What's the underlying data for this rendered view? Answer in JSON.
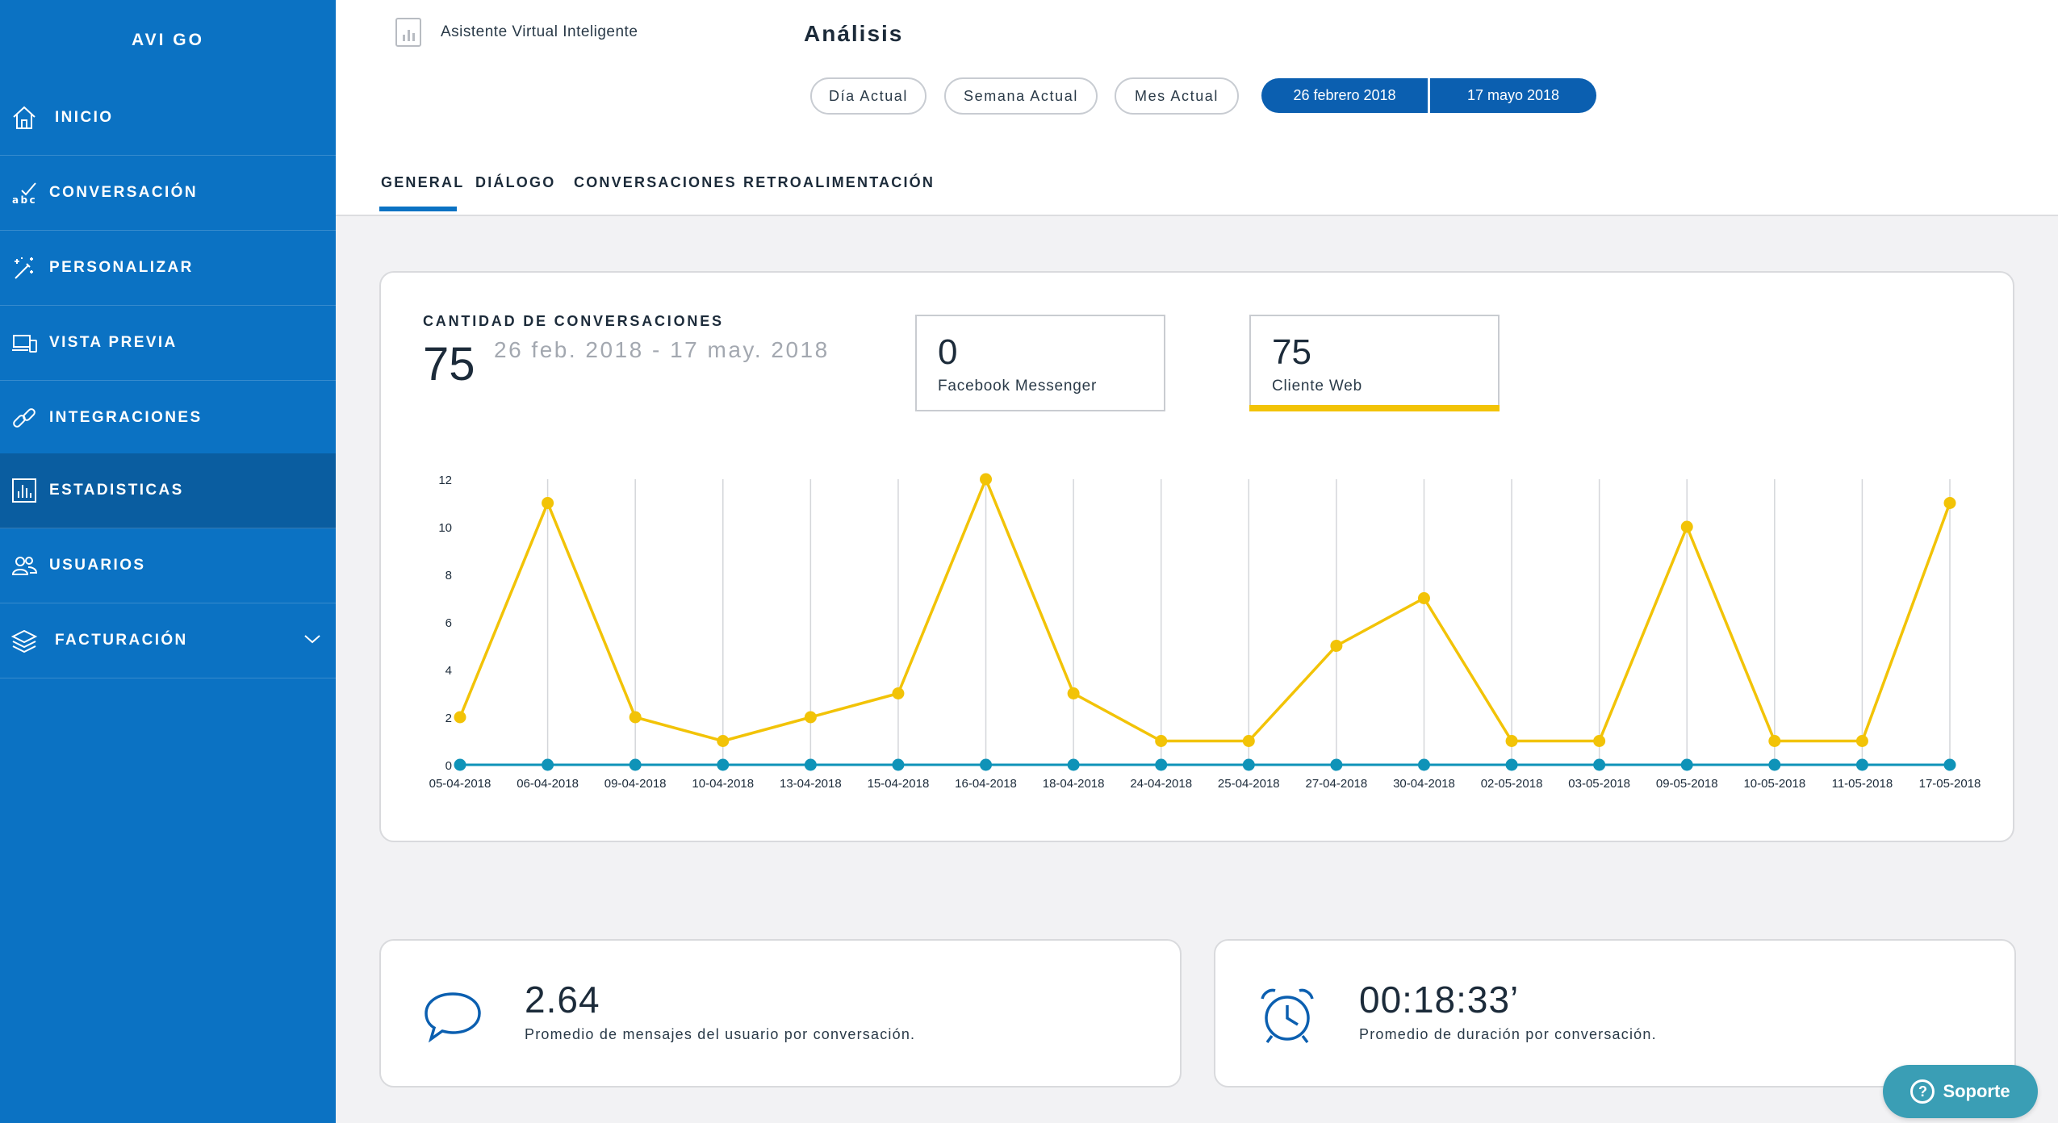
{
  "sidebar": {
    "brand": "AVI GO",
    "items": [
      {
        "label": "INICIO",
        "icon": "home-icon"
      },
      {
        "label": "CONVERSACIÓN",
        "icon": "abc-check-icon"
      },
      {
        "label": "PERSONALIZAR",
        "icon": "magic-wand-icon"
      },
      {
        "label": "VISTA PREVIA",
        "icon": "laptop-phone-icon"
      },
      {
        "label": "INTEGRACIONES",
        "icon": "link-icon"
      },
      {
        "label": "ESTADISTICAS",
        "icon": "bar-chart-icon",
        "active": true
      },
      {
        "label": "USUARIOS",
        "icon": "users-icon"
      },
      {
        "label": "FACTURACIÓN",
        "icon": "layers-icon",
        "expandable": true
      }
    ]
  },
  "header": {
    "assistant_name": "Asistente Virtual Inteligente",
    "title": "Análisis",
    "filters": [
      "Día Actual",
      "Semana Actual",
      "Mes Actual"
    ],
    "date_from": "26 febrero 2018",
    "date_to": "17 mayo 2018"
  },
  "tabs": [
    "GENERAL",
    "DIÁLOGO",
    "CONVERSACIONES",
    "RETROALIMENTACIÓN"
  ],
  "active_tab": "GENERAL",
  "conversations": {
    "label": "CANTIDAD DE CONVERSACIONES",
    "total": "75",
    "range": "26 feb. 2018 - 17 may. 2018",
    "channels": [
      {
        "value": "0",
        "name": "Facebook Messenger"
      },
      {
        "value": "75",
        "name": "Cliente Web",
        "selected": true
      }
    ]
  },
  "chart_data": {
    "type": "line",
    "categories": [
      "05-04-2018",
      "06-04-2018",
      "09-04-2018",
      "10-04-2018",
      "13-04-2018",
      "15-04-2018",
      "16-04-2018",
      "18-04-2018",
      "24-04-2018",
      "25-04-2018",
      "27-04-2018",
      "30-04-2018",
      "02-05-2018",
      "03-05-2018",
      "09-05-2018",
      "10-05-2018",
      "11-05-2018",
      "17-05-2018"
    ],
    "series": [
      {
        "name": "Cliente Web",
        "color": "#f2c307",
        "values": [
          2,
          11,
          2,
          1,
          2,
          3,
          12,
          3,
          1,
          1,
          5,
          7,
          1,
          1,
          10,
          1,
          1,
          11
        ]
      },
      {
        "name": "Facebook Messenger",
        "color": "#0f93b8",
        "values": [
          0,
          0,
          0,
          0,
          0,
          0,
          0,
          0,
          0,
          0,
          0,
          0,
          0,
          0,
          0,
          0,
          0,
          0
        ]
      }
    ],
    "ylim": [
      0,
      12
    ],
    "yticks": [
      "0",
      "2",
      "4",
      "6",
      "8",
      "10",
      "12"
    ],
    "grid": "vertical"
  },
  "stats": [
    {
      "value": "2.64",
      "label": "Promedio de mensajes del usuario por conversación.",
      "icon": "chat-bubble-icon"
    },
    {
      "value": "00:18:33’",
      "label": "Promedio de duración por conversación.",
      "icon": "alarm-clock-icon"
    }
  ],
  "support": {
    "label": "Soporte"
  }
}
